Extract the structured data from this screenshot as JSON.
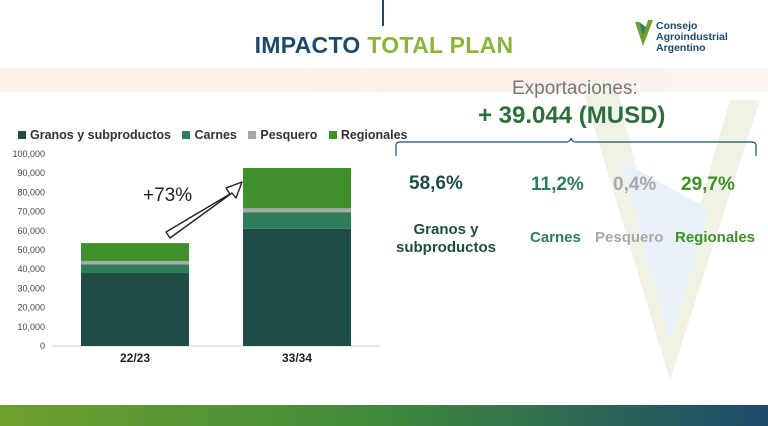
{
  "title": {
    "part1": "IMPACTO",
    "part2": "TOTAL PLAN"
  },
  "logo": {
    "line1": "Consejo",
    "line2": "Agroindustrial",
    "line3": "Argentino"
  },
  "exports": {
    "label": "Exportaciones:",
    "value": "+ 39.044 (MUSD)"
  },
  "breakdown": [
    {
      "pct": "58,6%",
      "name": "Granos y\nsubproductos",
      "color": "#1e4d45"
    },
    {
      "pct": "11,2%",
      "name": "Carnes",
      "color": "#2e7d5b"
    },
    {
      "pct": "0,4%",
      "name": "Pesquero",
      "color": "#a8a8a8"
    },
    {
      "pct": "29,7%",
      "name": "Regionales",
      "color": "#3f8f2a"
    }
  ],
  "colors": {
    "granos": "#1e4d45",
    "carnes": "#2e7d5b",
    "pesquero": "#a8a8a8",
    "regionales": "#3f8f2a"
  },
  "chart_data": {
    "type": "bar",
    "stacked": true,
    "categories": [
      "22/23",
      "33/34"
    ],
    "series": [
      {
        "name": "Granos y subproductos",
        "values": [
          38000,
          61000
        ],
        "color": "#1e4d45"
      },
      {
        "name": "Carnes",
        "values": [
          4500,
          8700
        ],
        "color": "#2e7d5b"
      },
      {
        "name": "Pesquero",
        "values": [
          1800,
          2000
        ],
        "color": "#a8a8a8"
      },
      {
        "name": "Regionales",
        "values": [
          9300,
          21000
        ],
        "color": "#3f8f2a"
      }
    ],
    "ylim": [
      0,
      100000
    ],
    "yticks": [
      "0",
      "10,000",
      "20,000",
      "30,000",
      "40,000",
      "50,000",
      "60,000",
      "70,000",
      "80,000",
      "90,000",
      "100,000"
    ],
    "annotation": "+73%",
    "legend": "top",
    "grid": false
  }
}
